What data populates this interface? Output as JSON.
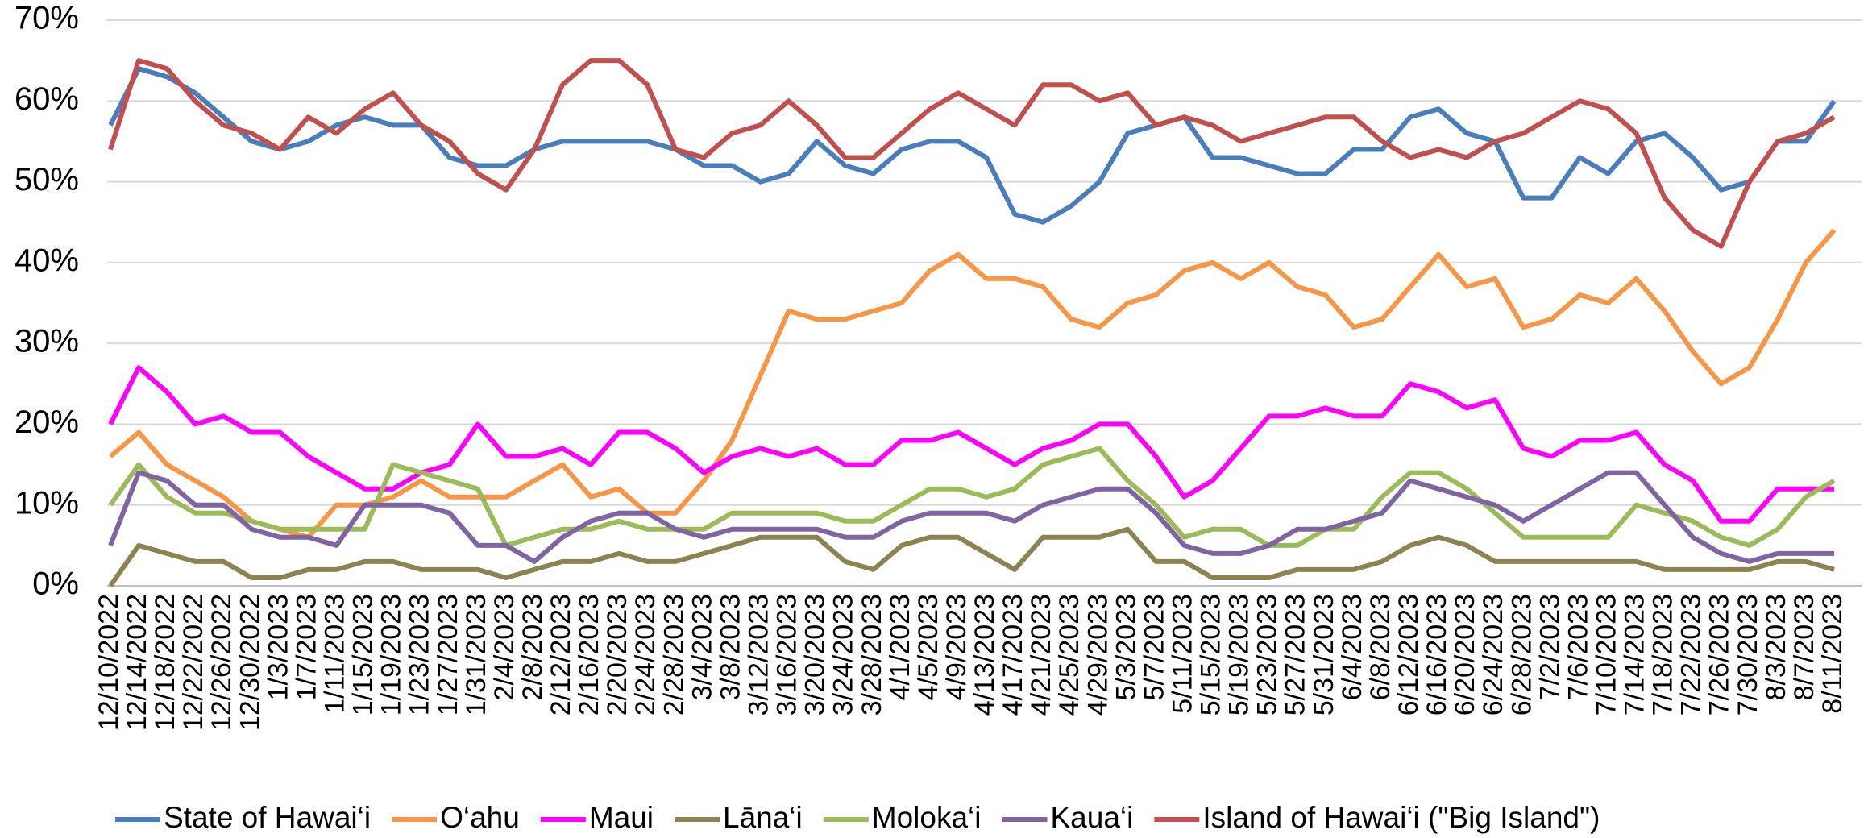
{
  "chart_data": {
    "type": "line",
    "categories": [
      "12/10/2022",
      "12/14/2022",
      "12/18/2022",
      "12/22/2022",
      "12/26/2022",
      "12/30/2022",
      "1/3/2023",
      "1/7/2023",
      "1/11/2023",
      "1/15/2023",
      "1/19/2023",
      "1/23/2023",
      "1/27/2023",
      "1/31/2023",
      "2/4/2023",
      "2/8/2023",
      "2/12/2023",
      "2/16/2023",
      "2/20/2023",
      "2/24/2023",
      "2/28/2023",
      "3/4/2023",
      "3/8/2023",
      "3/12/2023",
      "3/16/2023",
      "3/20/2023",
      "3/24/2023",
      "3/28/2023",
      "4/1/2023",
      "4/5/2023",
      "4/9/2023",
      "4/13/2023",
      "4/17/2023",
      "4/21/2023",
      "4/25/2023",
      "4/29/2023",
      "5/3/2023",
      "5/7/2023",
      "5/11/2023",
      "5/15/2023",
      "5/19/2023",
      "5/23/2023",
      "5/27/2023",
      "5/31/2023",
      "6/4/2023",
      "6/8/2023",
      "6/12/2023",
      "6/16/2023",
      "6/20/2023",
      "6/24/2023",
      "6/28/2023",
      "7/2/2023",
      "7/6/2023",
      "7/10/2023",
      "7/14/2023",
      "7/18/2023",
      "7/22/2023",
      "7/26/2023",
      "7/30/2023",
      "8/3/2023",
      "8/7/2023",
      "8/11/2023"
    ],
    "series": [
      {
        "name": "State of Hawai‘i",
        "color": "#4a7ebb",
        "values": [
          57,
          64,
          63,
          61,
          58,
          55,
          54,
          55,
          57,
          58,
          57,
          57,
          53,
          52,
          52,
          54,
          55,
          55,
          55,
          55,
          54,
          52,
          52,
          50,
          51,
          55,
          52,
          51,
          54,
          55,
          55,
          53,
          46,
          45,
          47,
          50,
          56,
          57,
          58,
          53,
          53,
          52,
          51,
          51,
          54,
          54,
          58,
          59,
          56,
          55,
          48,
          48,
          53,
          51,
          55,
          56,
          53,
          49,
          50,
          55,
          55,
          60
        ]
      },
      {
        "name": "O‘ahu",
        "color": "#f79646",
        "values": [
          16,
          19,
          15,
          13,
          11,
          8,
          7,
          6,
          10,
          10,
          11,
          13,
          11,
          11,
          11,
          13,
          15,
          11,
          12,
          9,
          9,
          13,
          18,
          26,
          34,
          33,
          33,
          34,
          35,
          39,
          41,
          38,
          38,
          37,
          33,
          32,
          35,
          36,
          39,
          40,
          38,
          40,
          37,
          36,
          32,
          33,
          37,
          41,
          37,
          38,
          32,
          33,
          36,
          35,
          38,
          34,
          29,
          25,
          27,
          33,
          40,
          44
        ]
      },
      {
        "name": "Maui",
        "color": "#ff00ff",
        "values": [
          20,
          27,
          24,
          20,
          21,
          19,
          19,
          16,
          14,
          12,
          12,
          14,
          15,
          20,
          16,
          16,
          17,
          15,
          19,
          19,
          17,
          14,
          16,
          17,
          16,
          17,
          15,
          15,
          18,
          18,
          19,
          17,
          15,
          17,
          18,
          20,
          20,
          16,
          11,
          13,
          17,
          21,
          21,
          22,
          21,
          21,
          25,
          24,
          22,
          23,
          17,
          16,
          18,
          18,
          19,
          15,
          13,
          8,
          8,
          12,
          12,
          12
        ]
      },
      {
        "name": "Lāna‘i",
        "color": "#8b8350",
        "values": [
          0,
          5,
          4,
          3,
          3,
          1,
          1,
          2,
          2,
          3,
          3,
          2,
          2,
          2,
          1,
          2,
          3,
          3,
          4,
          3,
          3,
          4,
          5,
          6,
          6,
          6,
          3,
          2,
          5,
          6,
          6,
          4,
          2,
          6,
          6,
          6,
          7,
          3,
          3,
          1,
          1,
          1,
          2,
          2,
          2,
          3,
          5,
          6,
          5,
          3,
          3,
          3,
          3,
          3,
          3,
          2,
          2,
          2,
          2,
          3,
          3,
          2
        ]
      },
      {
        "name": "Moloka‘i",
        "color": "#9bbb59",
        "values": [
          10,
          15,
          11,
          9,
          9,
          8,
          7,
          7,
          7,
          7,
          15,
          14,
          13,
          12,
          5,
          6,
          7,
          7,
          8,
          7,
          7,
          7,
          9,
          9,
          9,
          9,
          8,
          8,
          10,
          12,
          12,
          11,
          12,
          15,
          16,
          17,
          13,
          10,
          6,
          7,
          7,
          5,
          5,
          7,
          7,
          11,
          14,
          14,
          12,
          9,
          6,
          6,
          6,
          6,
          10,
          9,
          8,
          6,
          5,
          7,
          11,
          13
        ]
      },
      {
        "name": "Kaua‘i",
        "color": "#8064a2",
        "values": [
          5,
          14,
          13,
          10,
          10,
          7,
          6,
          6,
          5,
          10,
          10,
          10,
          9,
          5,
          5,
          3,
          6,
          8,
          9,
          9,
          7,
          6,
          7,
          7,
          7,
          7,
          6,
          6,
          8,
          9,
          9,
          9,
          8,
          10,
          11,
          12,
          12,
          9,
          5,
          4,
          4,
          5,
          7,
          7,
          8,
          9,
          13,
          12,
          11,
          10,
          8,
          10,
          12,
          14,
          14,
          10,
          6,
          4,
          3,
          4,
          4,
          4
        ]
      },
      {
        "name": "Island of Hawai‘i (\"Big Island\")",
        "color": "#c0504d",
        "values": [
          54,
          65,
          64,
          60,
          57,
          56,
          54,
          58,
          56,
          59,
          61,
          57,
          55,
          51,
          49,
          54,
          62,
          65,
          65,
          62,
          54,
          53,
          56,
          57,
          60,
          57,
          53,
          53,
          56,
          59,
          61,
          59,
          57,
          62,
          62,
          60,
          61,
          57,
          58,
          57,
          55,
          56,
          57,
          58,
          58,
          55,
          53,
          54,
          53,
          55,
          56,
          58,
          60,
          59,
          56,
          48,
          44,
          42,
          50,
          55,
          56,
          58
        ]
      }
    ],
    "ylim": [
      0,
      70
    ],
    "yticks": [
      {
        "value": 0,
        "label": "0%"
      },
      {
        "value": 10,
        "label": "10%"
      },
      {
        "value": 20,
        "label": "20%"
      },
      {
        "value": 30,
        "label": "30%"
      },
      {
        "value": 40,
        "label": "40%"
      },
      {
        "value": 50,
        "label": "50%"
      },
      {
        "value": 60,
        "label": "60%"
      },
      {
        "value": 70,
        "label": "70%"
      }
    ],
    "grid": true,
    "legend": "bottom"
  }
}
